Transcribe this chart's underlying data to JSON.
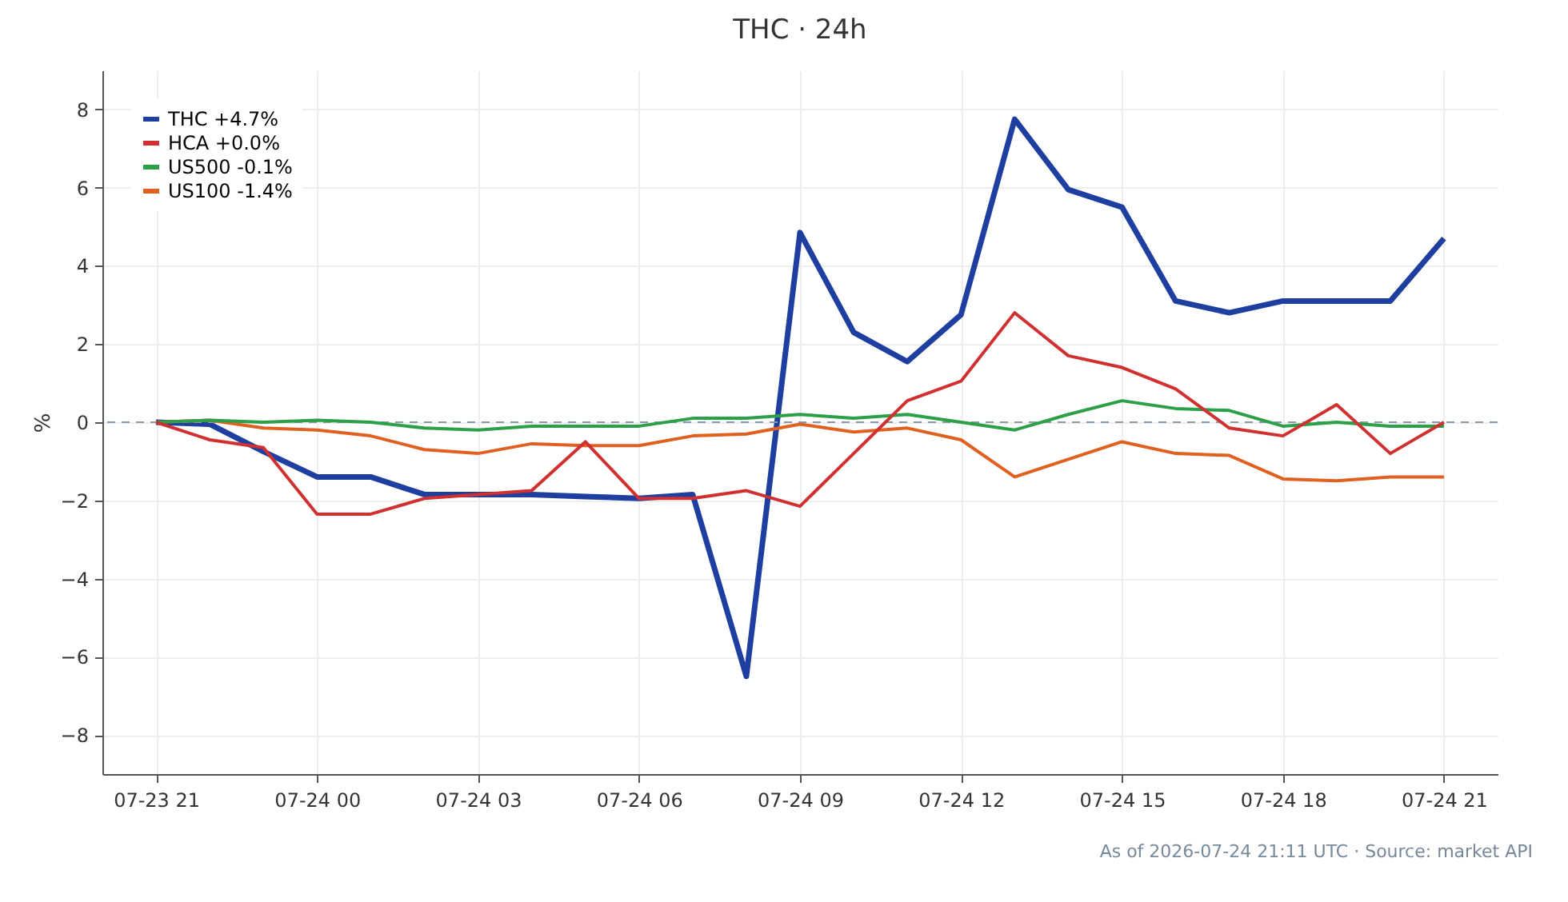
{
  "chart_data": {
    "type": "line",
    "title": "THC · 24h",
    "ylabel": "%",
    "x": [
      "2026-07-23T21:00",
      "2026-07-23T22:00",
      "2026-07-23T23:00",
      "2026-07-24T00:00",
      "2026-07-24T01:00",
      "2026-07-24T02:00",
      "2026-07-24T03:00",
      "2026-07-24T04:00",
      "2026-07-24T05:00",
      "2026-07-24T06:00",
      "2026-07-24T07:00",
      "2026-07-24T08:00",
      "2026-07-24T09:00",
      "2026-07-24T10:00",
      "2026-07-24T11:00",
      "2026-07-24T12:00",
      "2026-07-24T13:00",
      "2026-07-24T14:00",
      "2026-07-24T15:00",
      "2026-07-24T16:00",
      "2026-07-24T17:00",
      "2026-07-24T18:00",
      "2026-07-24T19:00",
      "2026-07-24T20:00",
      "2026-07-24T21:00"
    ],
    "series": [
      {
        "name": "THC +4.7%",
        "color": "#1f3fa0",
        "values": [
          0,
          -0.05,
          -0.75,
          -1.4,
          -1.4,
          -1.85,
          -1.85,
          -1.85,
          -1.9,
          -1.95,
          -1.85,
          -6.5,
          4.85,
          2.3,
          1.55,
          2.75,
          7.75,
          5.95,
          5.5,
          3.1,
          2.8,
          3.1,
          3.1,
          3.1,
          4.7
        ]
      },
      {
        "name": "HCA +0.0%",
        "color": "#d03030",
        "values": [
          0,
          -0.45,
          -0.65,
          -2.35,
          -2.35,
          -1.95,
          -1.85,
          -1.75,
          -0.5,
          -1.95,
          -1.95,
          -1.75,
          -2.15,
          -0.8,
          0.55,
          1.05,
          2.8,
          1.7,
          1.4,
          0.85,
          -0.15,
          -0.35,
          0.45,
          -0.8,
          0
        ]
      },
      {
        "name": "US500 -0.1%",
        "color": "#2ca048",
        "values": [
          0,
          0.05,
          0,
          0.05,
          0,
          -0.15,
          -0.2,
          -0.1,
          -0.1,
          -0.1,
          0.1,
          0.1,
          0.2,
          0.1,
          0.2,
          0,
          -0.2,
          0.2,
          0.55,
          0.35,
          0.3,
          -0.1,
          0,
          -0.1,
          -0.1
        ]
      },
      {
        "name": "US100 -1.4%",
        "color": "#e06020",
        "values": [
          0,
          0.05,
          -0.15,
          -0.2,
          -0.35,
          -0.7,
          -0.8,
          -0.55,
          -0.6,
          -0.6,
          -0.35,
          -0.3,
          -0.05,
          -0.25,
          -0.15,
          -0.45,
          -1.4,
          -0.95,
          -0.5,
          -0.8,
          -0.85,
          -1.45,
          -1.5,
          -1.4,
          -1.4
        ]
      }
    ],
    "xlim": [
      "2026-07-23T20:00",
      "2026-07-24T22:00"
    ],
    "xticks": [
      {
        "value": "2026-07-23T21:00",
        "label": "07-23 21"
      },
      {
        "value": "2026-07-24T00:00",
        "label": "07-24 00"
      },
      {
        "value": "2026-07-24T03:00",
        "label": "07-24 03"
      },
      {
        "value": "2026-07-24T06:00",
        "label": "07-24 06"
      },
      {
        "value": "2026-07-24T09:00",
        "label": "07-24 09"
      },
      {
        "value": "2026-07-24T12:00",
        "label": "07-24 12"
      },
      {
        "value": "2026-07-24T15:00",
        "label": "07-24 15"
      },
      {
        "value": "2026-07-24T18:00",
        "label": "07-24 18"
      },
      {
        "value": "2026-07-24T21:00",
        "label": "07-24 21"
      }
    ],
    "ylim": [
      -9,
      9
    ],
    "yticks": [
      {
        "value": -8,
        "label": "−8"
      },
      {
        "value": -6,
        "label": "−6"
      },
      {
        "value": -4,
        "label": "−4"
      },
      {
        "value": -2,
        "label": "−2"
      },
      {
        "value": 0,
        "label": "0"
      },
      {
        "value": 2,
        "label": "2"
      },
      {
        "value": 4,
        "label": "4"
      },
      {
        "value": 6,
        "label": "6"
      },
      {
        "value": 8,
        "label": "8"
      }
    ],
    "ref_lines": [
      {
        "axis": "y",
        "value": 0,
        "color": "#8899aa",
        "line_style": "dashed"
      }
    ],
    "grid": true,
    "legend": "top left",
    "line_style": "solid",
    "marker": "none",
    "annotations": [
      "As of 2026-07-24 21:11 UTC · Source: market API"
    ]
  }
}
